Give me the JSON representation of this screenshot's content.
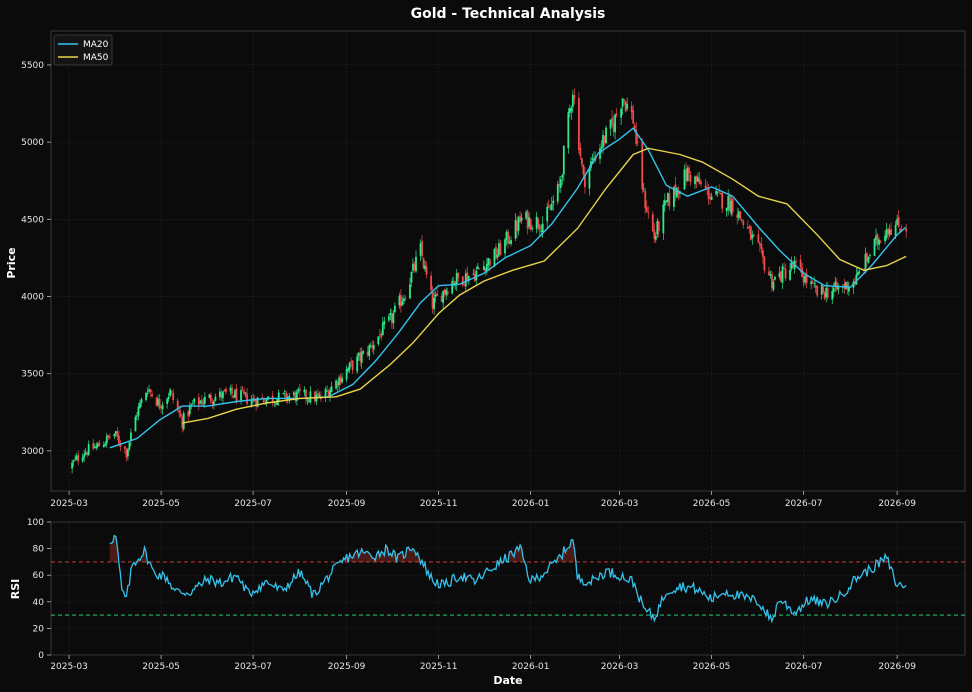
{
  "chart_data": [
    {
      "type": "candlestick",
      "title": "Gold - Technical Analysis",
      "xlabel": "",
      "ylabel": "Price",
      "ylim": [
        2740,
        5720
      ],
      "xlim": [
        "2025-02-17",
        "2026-10-16"
      ],
      "grid": true,
      "legend_position": "top-left",
      "x_ticks": [
        "2025-03",
        "2025-05",
        "2025-07",
        "2025-09",
        "2025-11",
        "2026-01",
        "2026-03",
        "2026-05",
        "2026-07",
        "2026-09"
      ],
      "y_ticks": [
        3000,
        3500,
        4000,
        4500,
        5000,
        5500
      ],
      "colors": {
        "up": "#2ee88a",
        "down": "#ef4b4b",
        "ma20": "#35c3ee",
        "ma50": "#e8d34a"
      },
      "price_path": [
        [
          "2025-03-01",
          2890
        ],
        [
          "2025-03-10",
          2990
        ],
        [
          "2025-03-20",
          3030
        ],
        [
          "2025-03-31",
          3110
        ],
        [
          "2025-04-08",
          2990
        ],
        [
          "2025-04-15",
          3250
        ],
        [
          "2025-04-22",
          3410
        ],
        [
          "2025-04-30",
          3300
        ],
        [
          "2025-05-07",
          3380
        ],
        [
          "2025-05-15",
          3190
        ],
        [
          "2025-05-22",
          3300
        ],
        [
          "2025-06-01",
          3340
        ],
        [
          "2025-06-15",
          3370
        ],
        [
          "2025-07-01",
          3330
        ],
        [
          "2025-07-15",
          3340
        ],
        [
          "2025-08-01",
          3360
        ],
        [
          "2025-08-15",
          3340
        ],
        [
          "2025-09-01",
          3520
        ],
        [
          "2025-09-15",
          3650
        ],
        [
          "2025-10-01",
          3860
        ],
        [
          "2025-10-10",
          4030
        ],
        [
          "2025-10-20",
          4300
        ],
        [
          "2025-10-28",
          3950
        ],
        [
          "2025-11-10",
          4100
        ],
        [
          "2025-11-25",
          4150
        ],
        [
          "2025-12-10",
          4280
        ],
        [
          "2025-12-26",
          4500
        ],
        [
          "2026-01-10",
          4480
        ],
        [
          "2026-01-20",
          4700
        ],
        [
          "2026-01-29",
          5350
        ],
        [
          "2026-02-05",
          4750
        ],
        [
          "2026-02-15",
          4960
        ],
        [
          "2026-02-25",
          5120
        ],
        [
          "2026-03-03",
          5300
        ],
        [
          "2026-03-10",
          5150
        ],
        [
          "2026-03-17",
          4650
        ],
        [
          "2026-03-24",
          4380
        ],
        [
          "2026-04-01",
          4600
        ],
        [
          "2026-04-15",
          4800
        ],
        [
          "2026-05-01",
          4650
        ],
        [
          "2026-05-15",
          4600
        ],
        [
          "2026-06-01",
          4300
        ],
        [
          "2026-06-10",
          4100
        ],
        [
          "2026-06-25",
          4200
        ],
        [
          "2026-07-10",
          4020
        ],
        [
          "2026-07-25",
          4050
        ],
        [
          "2026-08-05",
          4110
        ],
        [
          "2026-08-15",
          4300
        ],
        [
          "2026-08-25",
          4450
        ],
        [
          "2026-09-07",
          4460
        ]
      ],
      "series": [
        {
          "name": "MA20",
          "start": "2025-03-28",
          "path": [
            [
              "2025-03-28",
              3020
            ],
            [
              "2025-04-15",
              3080
            ],
            [
              "2025-04-30",
              3200
            ],
            [
              "2025-05-15",
              3290
            ],
            [
              "2025-06-01",
              3290
            ],
            [
              "2025-06-20",
              3320
            ],
            [
              "2025-07-10",
              3340
            ],
            [
              "2025-08-01",
              3340
            ],
            [
              "2025-08-20",
              3350
            ],
            [
              "2025-09-05",
              3430
            ],
            [
              "2025-09-20",
              3580
            ],
            [
              "2025-10-05",
              3760
            ],
            [
              "2025-10-20",
              3960
            ],
            [
              "2025-11-01",
              4070
            ],
            [
              "2025-11-15",
              4080
            ],
            [
              "2025-12-01",
              4150
            ],
            [
              "2025-12-15",
              4250
            ],
            [
              "2026-01-01",
              4330
            ],
            [
              "2026-01-15",
              4470
            ],
            [
              "2026-02-01",
              4700
            ],
            [
              "2026-02-15",
              4930
            ],
            [
              "2026-03-01",
              5020
            ],
            [
              "2026-03-10",
              5090
            ],
            [
              "2026-03-20",
              4950
            ],
            [
              "2026-04-01",
              4720
            ],
            [
              "2026-04-15",
              4650
            ],
            [
              "2026-05-01",
              4710
            ],
            [
              "2026-05-15",
              4650
            ],
            [
              "2026-06-01",
              4450
            ],
            [
              "2026-06-15",
              4300
            ],
            [
              "2026-07-01",
              4150
            ],
            [
              "2026-07-15",
              4070
            ],
            [
              "2026-08-01",
              4060
            ],
            [
              "2026-08-15",
              4200
            ],
            [
              "2026-09-01",
              4400
            ],
            [
              "2026-09-07",
              4450
            ]
          ]
        },
        {
          "name": "MA50",
          "start": "2025-05-15",
          "path": [
            [
              "2025-05-15",
              3180
            ],
            [
              "2025-06-01",
              3210
            ],
            [
              "2025-06-20",
              3270
            ],
            [
              "2025-07-10",
              3310
            ],
            [
              "2025-08-01",
              3340
            ],
            [
              "2025-08-25",
              3350
            ],
            [
              "2025-09-10",
              3400
            ],
            [
              "2025-09-30",
              3560
            ],
            [
              "2025-10-15",
              3700
            ],
            [
              "2025-11-01",
              3890
            ],
            [
              "2025-11-15",
              4010
            ],
            [
              "2025-12-01",
              4100
            ],
            [
              "2025-12-20",
              4170
            ],
            [
              "2026-01-10",
              4230
            ],
            [
              "2026-02-01",
              4440
            ],
            [
              "2026-02-20",
              4700
            ],
            [
              "2026-03-10",
              4920
            ],
            [
              "2026-03-20",
              4960
            ],
            [
              "2026-04-10",
              4920
            ],
            [
              "2026-04-25",
              4870
            ],
            [
              "2026-05-15",
              4760
            ],
            [
              "2026-06-01",
              4650
            ],
            [
              "2026-06-20",
              4600
            ],
            [
              "2026-07-10",
              4400
            ],
            [
              "2026-07-25",
              4240
            ],
            [
              "2026-08-10",
              4170
            ],
            [
              "2026-08-25",
              4200
            ],
            [
              "2026-09-07",
              4260
            ]
          ]
        }
      ]
    },
    {
      "type": "line",
      "title": "",
      "xlabel": "Date",
      "ylabel": "RSI",
      "ylim": [
        0,
        100
      ],
      "xlim": [
        "2025-02-17",
        "2026-10-16"
      ],
      "grid": true,
      "x_ticks": [
        "2025-03",
        "2025-05",
        "2025-07",
        "2025-09",
        "2025-11",
        "2026-01",
        "2026-03",
        "2026-05",
        "2026-07",
        "2026-09"
      ],
      "y_ticks": [
        0,
        20,
        40,
        60,
        80,
        100
      ],
      "overbought": 70,
      "oversold": 30,
      "colors": {
        "line": "#35c3ee",
        "overbought": "#e0443a",
        "oversold": "#2ee88a"
      },
      "series": [
        {
          "name": "RSI",
          "path": [
            [
              "2025-03-28",
              86
            ],
            [
              "2025-04-01",
              89
            ],
            [
              "2025-04-05",
              48
            ],
            [
              "2025-04-08",
              42
            ],
            [
              "2025-04-12",
              68
            ],
            [
              "2025-04-20",
              78
            ],
            [
              "2025-04-26",
              62
            ],
            [
              "2025-05-05",
              58
            ],
            [
              "2025-05-10",
              48
            ],
            [
              "2025-05-20",
              47
            ],
            [
              "2025-06-01",
              57
            ],
            [
              "2025-06-10",
              54
            ],
            [
              "2025-06-20",
              60
            ],
            [
              "2025-06-28",
              46
            ],
            [
              "2025-07-10",
              55
            ],
            [
              "2025-07-20",
              48
            ],
            [
              "2025-08-01",
              62
            ],
            [
              "2025-08-10",
              45
            ],
            [
              "2025-08-22",
              62
            ],
            [
              "2025-09-01",
              73
            ],
            [
              "2025-09-10",
              77
            ],
            [
              "2025-09-20",
              75
            ],
            [
              "2025-09-28",
              80
            ],
            [
              "2025-10-05",
              72
            ],
            [
              "2025-10-15",
              82
            ],
            [
              "2025-10-22",
              68
            ],
            [
              "2025-10-28",
              56
            ],
            [
              "2025-11-05",
              52
            ],
            [
              "2025-11-15",
              60
            ],
            [
              "2025-11-25",
              55
            ],
            [
              "2025-12-05",
              64
            ],
            [
              "2025-12-15",
              72
            ],
            [
              "2025-12-25",
              80
            ],
            [
              "2026-01-01",
              55
            ],
            [
              "2026-01-10",
              62
            ],
            [
              "2026-01-18",
              70
            ],
            [
              "2026-01-29",
              87
            ],
            [
              "2026-02-01",
              58
            ],
            [
              "2026-02-10",
              55
            ],
            [
              "2026-02-20",
              63
            ],
            [
              "2026-03-01",
              60
            ],
            [
              "2026-03-10",
              55
            ],
            [
              "2026-03-17",
              35
            ],
            [
              "2026-03-24",
              28
            ],
            [
              "2026-04-01",
              48
            ],
            [
              "2026-04-10",
              52
            ],
            [
              "2026-04-20",
              50
            ],
            [
              "2026-05-01",
              42
            ],
            [
              "2026-05-10",
              48
            ],
            [
              "2026-05-20",
              44
            ],
            [
              "2026-06-01",
              40
            ],
            [
              "2026-06-10",
              26
            ],
            [
              "2026-06-15",
              42
            ],
            [
              "2026-06-25",
              32
            ],
            [
              "2026-07-05",
              42
            ],
            [
              "2026-07-15",
              38
            ],
            [
              "2026-07-25",
              44
            ],
            [
              "2026-08-05",
              58
            ],
            [
              "2026-08-15",
              65
            ],
            [
              "2026-08-25",
              73
            ],
            [
              "2026-09-01",
              52
            ],
            [
              "2026-09-07",
              53
            ]
          ]
        }
      ]
    }
  ],
  "labels": {
    "title": "Gold - Technical Analysis",
    "price_ylabel": "Price",
    "rsi_ylabel": "RSI",
    "xlabel": "Date",
    "legend": [
      "MA20",
      "MA50"
    ]
  }
}
